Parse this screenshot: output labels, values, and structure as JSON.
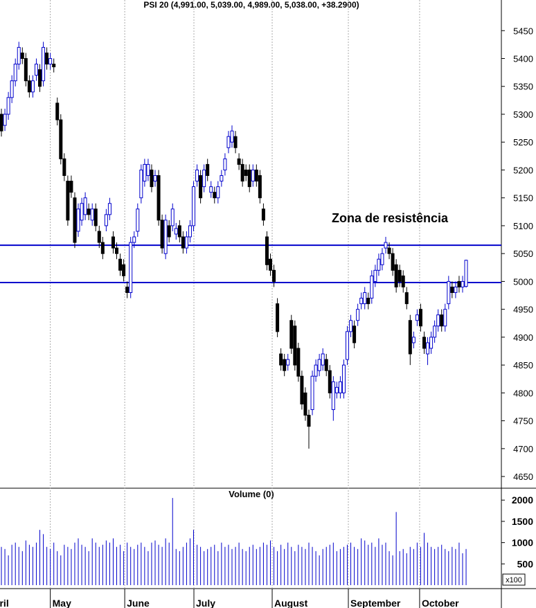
{
  "chart_data": [
    {
      "type": "candlestick",
      "title": "PSI 20 (4,991.00, 5,039.00, 4,989.00, 5,038.00, +38.2900)",
      "open": [
        5300,
        5280,
        5300,
        5330,
        5360,
        5390,
        5410,
        5400,
        5360,
        5340,
        5370,
        5380,
        5360,
        5410,
        5390,
        5390,
        5320,
        5290,
        5220,
        5180,
        5180,
        5150,
        5090,
        5110,
        5120,
        5130,
        5110,
        5130,
        5090,
        5070,
        5100,
        5120,
        5080,
        5060,
        5040,
        5030,
        4990,
        4980,
        5070,
        5090,
        5150,
        5180,
        5190,
        5200,
        5180,
        5190,
        5110,
        5050,
        5100,
        5100,
        5085,
        5100,
        5080,
        5060,
        5080,
        5100,
        5180,
        5190,
        5170,
        5210,
        5160,
        5160,
        5150,
        5180,
        5200,
        5240,
        5250,
        5260,
        5220,
        5210,
        5200,
        5200,
        5180,
        5200,
        5190,
        5130,
        5080,
        5040,
        5020,
        4960,
        4870,
        4860,
        4850,
        4930,
        4920,
        4880,
        4830,
        4800,
        4760,
        4770,
        4830,
        4840,
        4850,
        4860,
        4840,
        4770,
        4800,
        4800,
        4800,
        4860,
        4910,
        4920,
        4930,
        4960,
        4960,
        4970,
        4970,
        5000,
        5020,
        5030,
        5060,
        5060,
        5050,
        5030,
        5020,
        5010,
        4980,
        4930,
        4890,
        4930,
        4950,
        4900,
        4870,
        4880,
        4900,
        4920,
        4940,
        4920,
        4960,
        4990,
        4980,
        5000,
        4990,
        4991
      ],
      "high": [
        5310,
        5310,
        5340,
        5370,
        5400,
        5430,
        5420,
        5410,
        5370,
        5370,
        5400,
        5390,
        5430,
        5420,
        5410,
        5400,
        5330,
        5300,
        5230,
        5190,
        5190,
        5160,
        5140,
        5150,
        5160,
        5140,
        5140,
        5140,
        5100,
        5080,
        5130,
        5150,
        5090,
        5070,
        5050,
        5040,
        5000,
        5080,
        5090,
        5140,
        5210,
        5220,
        5220,
        5210,
        5200,
        5200,
        5120,
        5120,
        5110,
        5140,
        5105,
        5110,
        5090,
        5090,
        5110,
        5180,
        5210,
        5200,
        5210,
        5220,
        5180,
        5170,
        5180,
        5200,
        5230,
        5270,
        5280,
        5270,
        5230,
        5220,
        5210,
        5210,
        5210,
        5210,
        5200,
        5140,
        5090,
        5050,
        5030,
        4970,
        4880,
        4870,
        4870,
        4940,
        4930,
        4890,
        4840,
        4810,
        4770,
        4840,
        4860,
        4870,
        4880,
        4870,
        4850,
        4830,
        4820,
        4830,
        4860,
        4920,
        4940,
        4930,
        4960,
        4980,
        4990,
        4980,
        5020,
        5030,
        5050,
        5060,
        5080,
        5070,
        5060,
        5040,
        5030,
        5020,
        4990,
        4940,
        4910,
        4950,
        4960,
        4910,
        4900,
        4910,
        4930,
        4950,
        4950,
        4960,
        5010,
        5000,
        5000,
        5010,
        5010,
        5039
      ],
      "low": [
        5260,
        5270,
        5290,
        5320,
        5350,
        5380,
        5390,
        5350,
        5330,
        5330,
        5360,
        5340,
        5350,
        5380,
        5380,
        5375,
        5280,
        5210,
        5180,
        5100,
        5150,
        5060,
        5080,
        5100,
        5110,
        5110,
        5100,
        5090,
        5060,
        5040,
        5090,
        5110,
        5050,
        5040,
        5010,
        5000,
        4970,
        4970,
        5060,
        5080,
        5140,
        5170,
        5180,
        5160,
        5170,
        5100,
        5050,
        5040,
        5070,
        5090,
        5075,
        5070,
        5050,
        5050,
        5070,
        5090,
        5170,
        5140,
        5160,
        5180,
        5150,
        5140,
        5140,
        5170,
        5190,
        5230,
        5240,
        5230,
        5200,
        5170,
        5180,
        5160,
        5170,
        5170,
        5140,
        5100,
        5020,
        5010,
        4990,
        4900,
        4840,
        4830,
        4840,
        4870,
        4840,
        4820,
        4770,
        4750,
        4700,
        4760,
        4820,
        4830,
        4840,
        4830,
        4790,
        4750,
        4790,
        4790,
        4790,
        4850,
        4900,
        4880,
        4920,
        4950,
        4950,
        4950,
        4960,
        4990,
        5010,
        5020,
        5050,
        5040,
        5010,
        4980,
        4990,
        4980,
        4950,
        4850,
        4880,
        4920,
        4910,
        4870,
        4850,
        4870,
        4890,
        4910,
        4910,
        4910,
        4950,
        4970,
        4970,
        4980,
        4980,
        4989
      ],
      "close": [
        5270,
        5300,
        5330,
        5360,
        5390,
        5420,
        5400,
        5360,
        5340,
        5360,
        5390,
        5350,
        5420,
        5390,
        5400,
        5385,
        5290,
        5220,
        5190,
        5110,
        5160,
        5070,
        5130,
        5140,
        5150,
        5120,
        5130,
        5100,
        5070,
        5050,
        5120,
        5140,
        5060,
        5050,
        5020,
        5010,
        4980,
        5070,
        5080,
        5130,
        5200,
        5210,
        5210,
        5170,
        5190,
        5110,
        5060,
        5110,
        5080,
        5130,
        5095,
        5080,
        5060,
        5080,
        5100,
        5170,
        5200,
        5150,
        5200,
        5190,
        5170,
        5150,
        5170,
        5190,
        5220,
        5260,
        5270,
        5240,
        5210,
        5180,
        5190,
        5170,
        5200,
        5180,
        5150,
        5110,
        5030,
        5020,
        5000,
        4910,
        4850,
        4840,
        4860,
        4880,
        4850,
        4830,
        4780,
        4760,
        4740,
        4830,
        4850,
        4860,
        4870,
        4840,
        4800,
        4820,
        4810,
        4820,
        4850,
        4910,
        4930,
        4890,
        4950,
        4970,
        4980,
        4960,
        5010,
        5020,
        5040,
        5050,
        5070,
        5050,
        5020,
        4990,
        5000,
        4990,
        4960,
        4870,
        4900,
        4940,
        4920,
        4880,
        4890,
        4900,
        4920,
        4940,
        4920,
        4950,
        5000,
        4980,
        4990,
        4990,
        5000,
        5038
      ],
      "up_color": "#0000cc",
      "down_color": "#000000",
      "xlim": [
        -0.4,
        143.1
      ],
      "xticks": [
        {
          "value": -4.8,
          "label": "April"
        },
        {
          "value": 14,
          "label": "May"
        },
        {
          "value": 35.3,
          "label": "June"
        },
        {
          "value": 55.1,
          "label": "July"
        },
        {
          "value": 77.5,
          "label": "August"
        },
        {
          "value": 99.3,
          "label": "September"
        },
        {
          "value": 119.7,
          "label": "October"
        }
      ],
      "ylim": [
        4629,
        5505
      ],
      "yticks": [
        4650,
        4700,
        4750,
        4800,
        4850,
        4900,
        4950,
        5000,
        5050,
        5100,
        5150,
        5200,
        5250,
        5300,
        5350,
        5400,
        5450
      ],
      "resistance_lines": [
        5065,
        4998
      ],
      "resistance_color": "#0000cc",
      "annotation": "Zona de resistência"
    },
    {
      "type": "volume",
      "title": "Volume (0)",
      "unit": "x100",
      "color": "#0000cc",
      "values": [
        900,
        850,
        700,
        950,
        1000,
        900,
        800,
        1050,
        950,
        900,
        1000,
        1300,
        1200,
        900,
        850,
        1000,
        800,
        700,
        950,
        900,
        850,
        1000,
        1100,
        950,
        900,
        800,
        1100,
        1000,
        900,
        950,
        1050,
        1000,
        1100,
        900,
        950,
        800,
        1000,
        900,
        850,
        950,
        1000,
        900,
        800,
        1000,
        1050,
        950,
        900,
        1100,
        1000,
        2050,
        850,
        800,
        900,
        1000,
        1100,
        1300,
        950,
        900,
        800,
        850,
        900,
        950,
        800,
        1000,
        900,
        950,
        850,
        900,
        1000,
        850,
        800,
        900,
        950,
        850,
        900,
        1000,
        950,
        1050,
        900,
        800,
        950,
        850,
        1000,
        900,
        800,
        950,
        900,
        850,
        1000,
        900,
        800,
        700,
        850,
        900,
        950,
        1000,
        800,
        850,
        900,
        950,
        1000,
        900,
        850,
        1100,
        1050,
        950,
        1000,
        900,
        1100,
        950,
        1000,
        800,
        700,
        1720,
        800,
        850,
        750,
        900,
        850,
        1000,
        900,
        1230,
        1000,
        900,
        850,
        900,
        950,
        850,
        800,
        900,
        850,
        1000,
        750,
        850
      ],
      "ylim": [
        0,
        2280
      ],
      "yticks": [
        500,
        1000,
        1500,
        2000
      ]
    }
  ]
}
